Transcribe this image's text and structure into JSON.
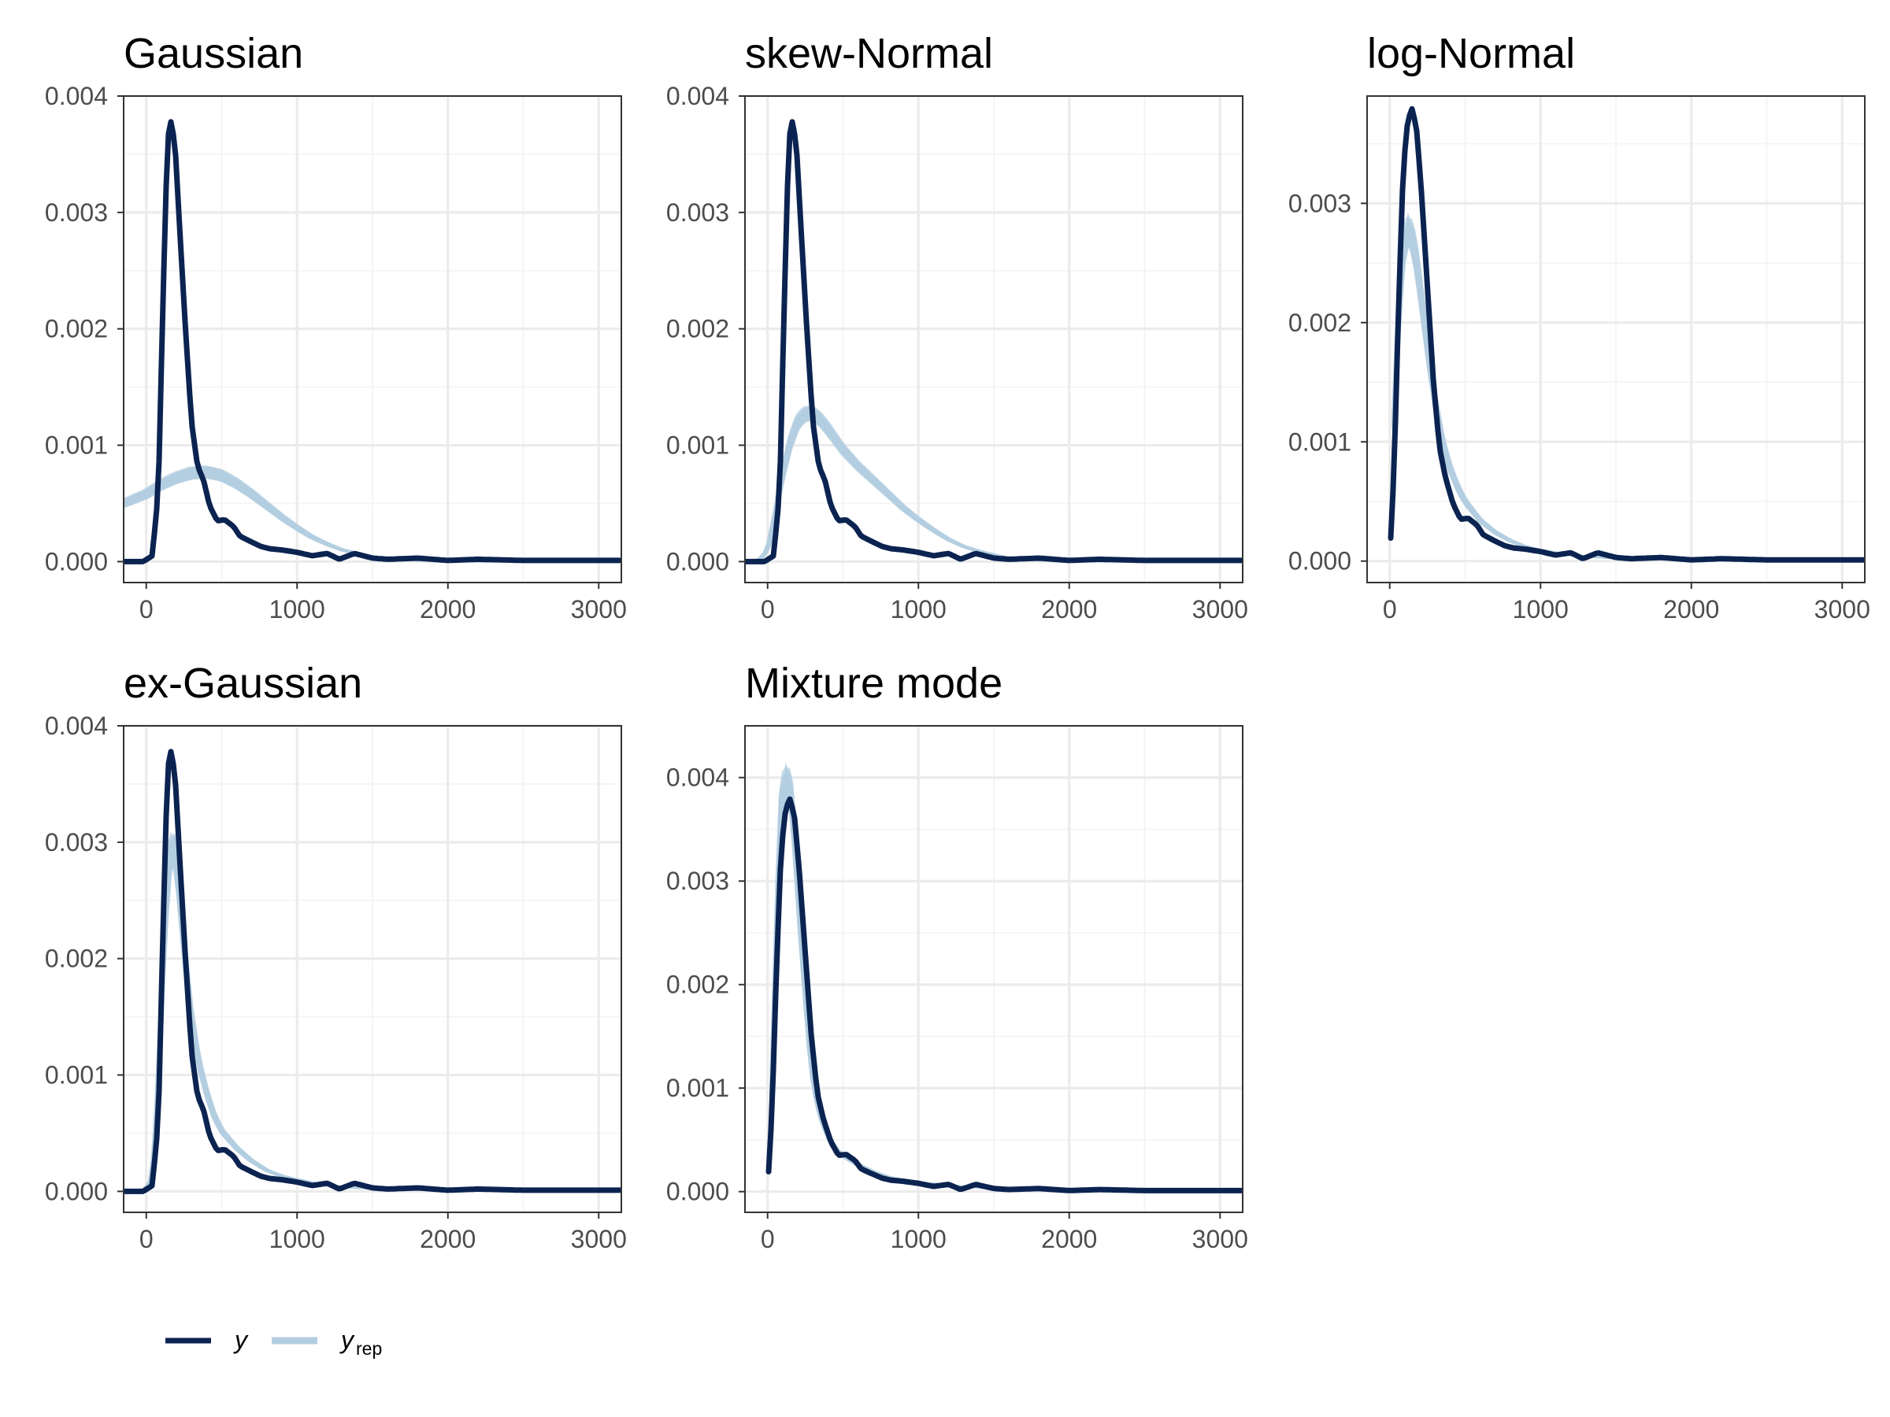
{
  "colors": {
    "y": "#0b2350",
    "y_rep": "#b3cde0",
    "grid_major": "#ebebeb",
    "grid_minor": "#f4f4f4",
    "panel_border": "#333333",
    "tick_text": "#4d4d4d"
  },
  "legend": {
    "position": "bottom-left",
    "items": [
      {
        "key": "y",
        "label": "y",
        "sub": "",
        "color": "#0b2350"
      },
      {
        "key": "y_rep",
        "label": "y",
        "sub": "rep",
        "color": "#b3cde0"
      }
    ]
  },
  "chart_data": [
    {
      "type": "line",
      "title": "Gaussian",
      "xlabel": "",
      "ylabel": "",
      "xlim": [
        -150,
        3150
      ],
      "ylim": [
        -0.00018,
        0.004
      ],
      "xticks": [
        0,
        1000,
        2000,
        3000
      ],
      "yticks": [
        0.0,
        0.001,
        0.002,
        0.003,
        0.004
      ],
      "ytick_labels": [
        "0.000",
        "0.001",
        "0.002",
        "0.003",
        "0.004"
      ],
      "grid": true,
      "y_curve": {
        "x": [
          -150,
          -20,
          40,
          80,
          110,
          140,
          160,
          190,
          220,
          260,
          300,
          340,
          380,
          420,
          470,
          520,
          580,
          620,
          680,
          760,
          820,
          900,
          1000,
          1100,
          1200,
          1280,
          1380,
          1500,
          1600,
          1800,
          2000,
          2200,
          2500,
          2800,
          3150
        ],
        "values": [
          0,
          0,
          5e-05,
          0.0006,
          0.0022,
          0.0036,
          0.0038,
          0.0036,
          0.0029,
          0.002,
          0.0012,
          0.00082,
          0.0007,
          0.00048,
          0.00035,
          0.00036,
          0.0003,
          0.00022,
          0.00018,
          0.00013,
          0.00011,
          0.0001,
          8e-05,
          5e-05,
          7e-05,
          2e-05,
          7e-05,
          3e-05,
          2e-05,
          3e-05,
          1e-05,
          2e-05,
          1e-05,
          1e-05,
          1e-05
        ]
      },
      "y_rep": {
        "x": [
          -150,
          0,
          100,
          200,
          300,
          400,
          500,
          600,
          700,
          800,
          900,
          1000,
          1100,
          1200,
          1300,
          1400,
          1500,
          1600,
          1800,
          2000,
          2400,
          2800,
          3150
        ],
        "values": [
          0.0005,
          0.00058,
          0.00066,
          0.00072,
          0.00076,
          0.00077,
          0.00074,
          0.00067,
          0.00058,
          0.00048,
          0.00038,
          0.00029,
          0.00021,
          0.00015,
          0.0001,
          7e-05,
          4e-05,
          3e-05,
          1e-05,
          5e-06,
          0,
          0,
          0
        ],
        "spread": 5e-05
      }
    },
    {
      "type": "line",
      "title": "skew-Normal",
      "xlabel": "",
      "ylabel": "",
      "xlim": [
        -150,
        3150
      ],
      "ylim": [
        -0.00018,
        0.004
      ],
      "xticks": [
        0,
        1000,
        2000,
        3000
      ],
      "yticks": [
        0.0,
        0.001,
        0.002,
        0.003,
        0.004
      ],
      "ytick_labels": [
        "0.000",
        "0.001",
        "0.002",
        "0.003",
        "0.004"
      ],
      "grid": true,
      "y_curve": {
        "x": [
          -150,
          -20,
          40,
          80,
          110,
          140,
          160,
          190,
          220,
          260,
          300,
          340,
          380,
          420,
          470,
          520,
          580,
          620,
          680,
          760,
          820,
          900,
          1000,
          1100,
          1200,
          1280,
          1380,
          1500,
          1600,
          1800,
          2000,
          2200,
          2500,
          2800,
          3150
        ],
        "values": [
          0,
          0,
          5e-05,
          0.0006,
          0.0022,
          0.0036,
          0.0038,
          0.0036,
          0.0029,
          0.002,
          0.0012,
          0.00082,
          0.0007,
          0.00048,
          0.00035,
          0.00036,
          0.0003,
          0.00022,
          0.00018,
          0.00013,
          0.00011,
          0.0001,
          8e-05,
          5e-05,
          7e-05,
          2e-05,
          7e-05,
          3e-05,
          2e-05,
          3e-05,
          1e-05,
          2e-05,
          1e-05,
          1e-05,
          1e-05
        ]
      },
      "y_rep": {
        "x": [
          -150,
          -50,
          0,
          50,
          100,
          150,
          200,
          250,
          300,
          350,
          400,
          450,
          500,
          600,
          700,
          800,
          900,
          1000,
          1100,
          1200,
          1300,
          1400,
          1500,
          1600,
          1800,
          2000,
          2500,
          3150
        ],
        "values": [
          0,
          2e-05,
          0.0001,
          0.0004,
          0.00075,
          0.00102,
          0.0012,
          0.00127,
          0.00127,
          0.00122,
          0.00114,
          0.00105,
          0.00096,
          0.00082,
          0.0007,
          0.00058,
          0.00046,
          0.00036,
          0.00027,
          0.00019,
          0.00013,
          9e-05,
          6e-05,
          3e-05,
          1e-05,
          5e-06,
          0,
          0
        ],
        "spread": 6e-05
      }
    },
    {
      "type": "line",
      "title": "log-Normal",
      "xlabel": "",
      "ylabel": "",
      "xlim": [
        -150,
        3150
      ],
      "ylim": [
        -0.00018,
        0.0039
      ],
      "xticks": [
        0,
        1000,
        2000,
        3000
      ],
      "yticks": [
        0.0,
        0.001,
        0.002,
        0.003
      ],
      "ytick_labels": [
        "0.000",
        "0.001",
        "0.002",
        "0.003"
      ],
      "grid": true,
      "y_curve": {
        "x": [
          5,
          30,
          60,
          90,
          120,
          150,
          180,
          210,
          250,
          290,
          330,
          370,
          420,
          470,
          520,
          580,
          620,
          680,
          760,
          820,
          900,
          1000,
          1100,
          1200,
          1280,
          1380,
          1500,
          1600,
          1800,
          2000,
          2200,
          2500,
          2800,
          3150
        ],
        "values": [
          0.00015,
          0.0008,
          0.0022,
          0.0033,
          0.0037,
          0.0038,
          0.0036,
          0.0031,
          0.0023,
          0.0015,
          0.00095,
          0.0007,
          0.00048,
          0.00035,
          0.00036,
          0.0003,
          0.00022,
          0.00018,
          0.00013,
          0.00011,
          0.0001,
          8e-05,
          5e-05,
          7e-05,
          2e-05,
          7e-05,
          3e-05,
          2e-05,
          3e-05,
          1e-05,
          2e-05,
          1e-05,
          1e-05,
          1e-05
        ]
      },
      "y_rep": {
        "x": [
          0,
          30,
          60,
          90,
          120,
          150,
          180,
          220,
          260,
          300,
          350,
          400,
          450,
          500,
          600,
          700,
          800,
          900,
          1000,
          1200,
          1400,
          1600,
          2000,
          2500,
          3150
        ],
        "values": [
          0.0005,
          0.0012,
          0.0021,
          0.0026,
          0.0028,
          0.0027,
          0.0025,
          0.0021,
          0.0017,
          0.00135,
          0.001,
          0.00078,
          0.00062,
          0.0005,
          0.00034,
          0.00024,
          0.00017,
          0.00012,
          9e-05,
          5e-05,
          3e-05,
          2e-05,
          1e-05,
          0,
          0
        ],
        "spread": 0.00012
      }
    },
    {
      "type": "line",
      "title": "ex-Gaussian",
      "xlabel": "",
      "ylabel": "",
      "xlim": [
        -150,
        3150
      ],
      "ylim": [
        -0.00018,
        0.004
      ],
      "xticks": [
        0,
        1000,
        2000,
        3000
      ],
      "yticks": [
        0.0,
        0.001,
        0.002,
        0.003,
        0.004
      ],
      "ytick_labels": [
        "0.000",
        "0.001",
        "0.002",
        "0.003",
        "0.004"
      ],
      "grid": true,
      "y_curve": {
        "x": [
          -150,
          -20,
          40,
          80,
          110,
          140,
          160,
          190,
          220,
          260,
          300,
          340,
          380,
          420,
          470,
          520,
          580,
          620,
          680,
          760,
          820,
          900,
          1000,
          1100,
          1200,
          1280,
          1380,
          1500,
          1600,
          1800,
          2000,
          2200,
          2500,
          2800,
          3150
        ],
        "values": [
          0,
          0,
          5e-05,
          0.0006,
          0.0022,
          0.0036,
          0.0038,
          0.0036,
          0.0029,
          0.002,
          0.0012,
          0.00082,
          0.0007,
          0.00048,
          0.00035,
          0.00036,
          0.0003,
          0.00022,
          0.00018,
          0.00013,
          0.00011,
          0.0001,
          8e-05,
          5e-05,
          7e-05,
          2e-05,
          7e-05,
          3e-05,
          2e-05,
          3e-05,
          1e-05,
          2e-05,
          1e-05,
          1e-05,
          1e-05
        ]
      },
      "y_rep": {
        "x": [
          -150,
          -20,
          40,
          80,
          120,
          150,
          180,
          210,
          250,
          300,
          350,
          400,
          450,
          500,
          600,
          700,
          800,
          900,
          1000,
          1200,
          1400,
          1600,
          2000,
          2500,
          3150
        ],
        "values": [
          0,
          0,
          0.0001,
          0.0009,
          0.0022,
          0.0028,
          0.003,
          0.0027,
          0.0021,
          0.0015,
          0.0011,
          0.00085,
          0.00065,
          0.00052,
          0.00037,
          0.00026,
          0.00018,
          0.00013,
          0.0001,
          5e-05,
          3e-05,
          2e-05,
          1e-05,
          0,
          0
        ],
        "spread": 0.00012
      }
    },
    {
      "type": "line",
      "title": "Mixture mode",
      "xlabel": "",
      "ylabel": "",
      "xlim": [
        -150,
        3150
      ],
      "ylim": [
        -0.0002,
        0.0045
      ],
      "xticks": [
        0,
        1000,
        2000,
        3000
      ],
      "yticks": [
        0.0,
        0.001,
        0.002,
        0.003,
        0.004
      ],
      "ytick_labels": [
        "0.000",
        "0.001",
        "0.002",
        "0.003",
        "0.004"
      ],
      "grid": true,
      "y_curve": {
        "x": [
          5,
          30,
          60,
          90,
          120,
          150,
          180,
          210,
          250,
          290,
          330,
          370,
          420,
          470,
          520,
          580,
          620,
          680,
          760,
          820,
          900,
          1000,
          1100,
          1200,
          1280,
          1380,
          1500,
          1600,
          1800,
          2000,
          2200,
          2500,
          2800,
          3150
        ],
        "values": [
          0.00015,
          0.0008,
          0.0022,
          0.0033,
          0.0037,
          0.0038,
          0.0036,
          0.0031,
          0.0023,
          0.0015,
          0.00095,
          0.0007,
          0.00048,
          0.00035,
          0.00036,
          0.0003,
          0.00022,
          0.00018,
          0.00013,
          0.00011,
          0.0001,
          8e-05,
          5e-05,
          7e-05,
          2e-05,
          7e-05,
          3e-05,
          2e-05,
          3e-05,
          1e-05,
          2e-05,
          1e-05,
          1e-05,
          1e-05
        ]
      },
      "y_rep": {
        "x": [
          5,
          30,
          60,
          90,
          120,
          150,
          180,
          210,
          250,
          290,
          330,
          370,
          420,
          470,
          520,
          600,
          700,
          800,
          900,
          1000,
          1200,
          1400,
          1600,
          2000,
          2500,
          3150
        ],
        "values": [
          0.0002,
          0.001,
          0.0026,
          0.0037,
          0.004,
          0.0039,
          0.0034,
          0.0027,
          0.0019,
          0.0012,
          0.00085,
          0.00065,
          0.00048,
          0.00038,
          0.00033,
          0.00026,
          0.00019,
          0.00014,
          0.00011,
          9e-05,
          6e-05,
          4e-05,
          2e-05,
          1e-05,
          5e-06,
          0
        ],
        "spread": 0.00014
      }
    }
  ]
}
